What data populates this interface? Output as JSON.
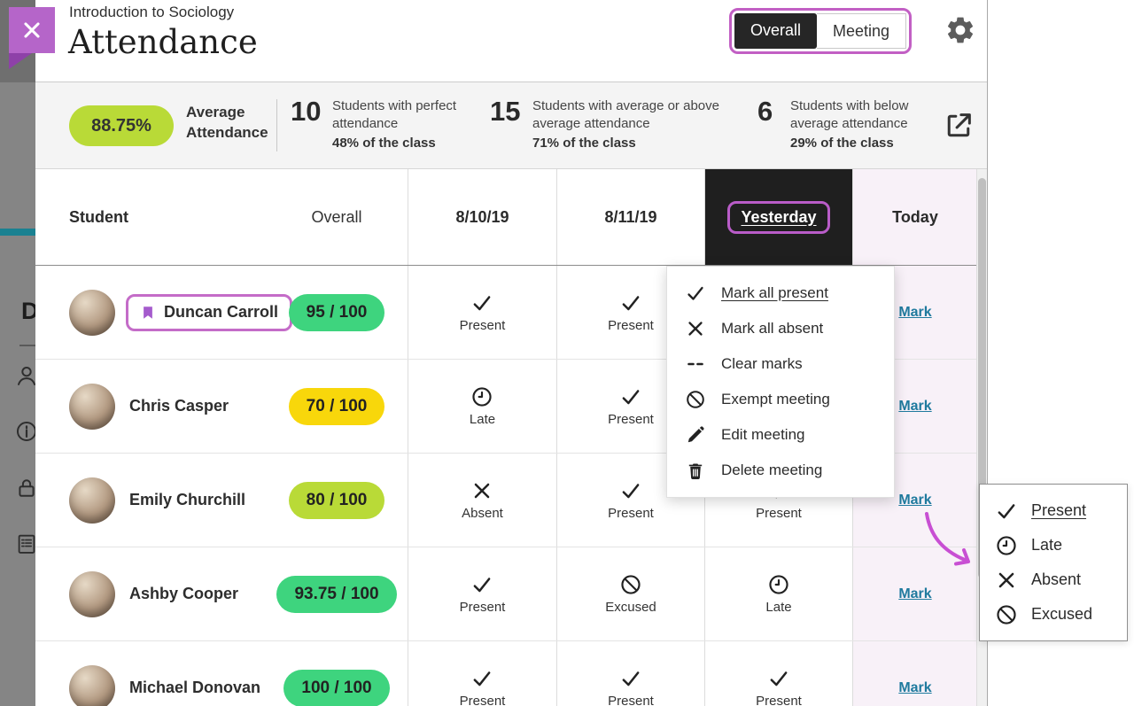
{
  "page": {
    "course_title": "Introduction to Sociology",
    "page_title": "Attendance"
  },
  "header": {
    "view_toggle": {
      "options": [
        {
          "label": "Overall",
          "selected": true
        },
        {
          "label": "Meeting",
          "selected": false
        }
      ]
    }
  },
  "stats": {
    "average_pill": "88.75%",
    "average_label": "Average Attendance",
    "items": [
      {
        "count": "10",
        "description": "Students with perfect attendance",
        "share": "48% of the class"
      },
      {
        "count": "15",
        "description": "Students with average or above average attendance",
        "share": "71% of the class"
      },
      {
        "count": "6",
        "description": "Students with below average attendance",
        "share": "29% of the class"
      }
    ]
  },
  "table": {
    "columns": [
      {
        "label": "Student"
      },
      {
        "label": "Overall"
      },
      {
        "label": "8/10/19"
      },
      {
        "label": "8/11/19"
      },
      {
        "label": "Yesterday",
        "selected": true
      },
      {
        "label": "Today",
        "highlight": true
      }
    ],
    "mark_label": "Mark",
    "rows": [
      {
        "name": "Duncan Carroll",
        "flagged": true,
        "score": "95 / 100",
        "score_color": "#3ed47e",
        "cells": [
          {
            "icon": "check",
            "label": "Present"
          },
          {
            "icon": "check",
            "label": "Present"
          },
          null
        ]
      },
      {
        "name": "Chris Casper",
        "flagged": false,
        "score": "70 / 100",
        "score_color": "#f8d70b",
        "cells": [
          {
            "icon": "clock",
            "label": "Late"
          },
          {
            "icon": "check",
            "label": "Present"
          },
          null
        ]
      },
      {
        "name": "Emily Churchill",
        "flagged": false,
        "score": "80 / 100",
        "score_color": "#b9da37",
        "cells": [
          {
            "icon": "x",
            "label": "Absent"
          },
          {
            "icon": "check",
            "label": "Present"
          },
          {
            "icon": "check",
            "label": "Present"
          }
        ]
      },
      {
        "name": "Ashby Cooper",
        "flagged": false,
        "score": "93.75 / 100",
        "score_color": "#3ed47e",
        "cells": [
          {
            "icon": "check",
            "label": "Present"
          },
          {
            "icon": "slash",
            "label": "Excused"
          },
          {
            "icon": "clock",
            "label": "Late"
          }
        ]
      },
      {
        "name": "Michael Donovan",
        "flagged": false,
        "score": "100 / 100",
        "score_color": "#3ed47e",
        "cells": [
          {
            "icon": "check",
            "label": "Present"
          },
          {
            "icon": "check",
            "label": "Present"
          },
          {
            "icon": "check",
            "label": "Present"
          }
        ]
      }
    ]
  },
  "meeting_menu": {
    "items": [
      {
        "icon": "check",
        "label": "Mark all present",
        "underlined": true
      },
      {
        "icon": "x",
        "label": "Mark all absent"
      },
      {
        "icon": "dash",
        "label": "Clear marks"
      },
      {
        "icon": "slash",
        "label": "Exempt meeting"
      },
      {
        "icon": "pencil",
        "label": "Edit meeting"
      },
      {
        "icon": "trash",
        "label": "Delete meeting"
      }
    ]
  },
  "status_menu": {
    "items": [
      {
        "icon": "check",
        "label": "Present",
        "underlined": true
      },
      {
        "icon": "clock",
        "label": "Late"
      },
      {
        "icon": "x",
        "label": "Absent"
      },
      {
        "icon": "slash",
        "label": "Excused"
      }
    ]
  },
  "sidebar": {
    "heading": "D"
  },
  "colors": {
    "accent_outline": "#c25fc4",
    "selected_bg": "#1f1f1f",
    "today_bg": "#f8f1f8",
    "link": "#1f7a9e",
    "green": "#3ed47e",
    "yellow": "#f8d70b",
    "lime": "#b9da37",
    "teal_bar": "#1a8191",
    "close_btn": "#b565c9"
  }
}
